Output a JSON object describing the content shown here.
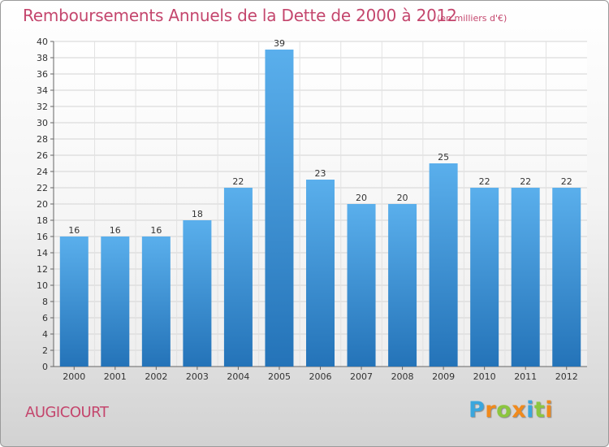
{
  "chart_data": {
    "type": "bar",
    "title": "Remboursements Annuels de la Dette de 2000 à 2012",
    "subtitle": "(en milliers d'€)",
    "categories": [
      "2000",
      "2001",
      "2002",
      "2003",
      "2004",
      "2005",
      "2006",
      "2007",
      "2008",
      "2009",
      "2010",
      "2011",
      "2012"
    ],
    "values": [
      16,
      16,
      16,
      18,
      22,
      39,
      23,
      20,
      20,
      25,
      22,
      22,
      22
    ],
    "ylim": [
      0,
      40
    ],
    "ytick_step": 2,
    "grid": true,
    "bar_color": "#4a9de0",
    "bar_color_dark": "#2473b8"
  },
  "footer": {
    "commune": "AUGICOURT",
    "logo_letters": [
      "P",
      "r",
      "o",
      "x",
      "i",
      "t",
      "i"
    ],
    "logo_colors": [
      "#3aa6dd",
      "#f08a1c",
      "#8cc63f",
      "#f08a1c",
      "#3aa6dd",
      "#8cc63f",
      "#f08a1c"
    ]
  },
  "colors": {
    "title": "#c4466d"
  }
}
